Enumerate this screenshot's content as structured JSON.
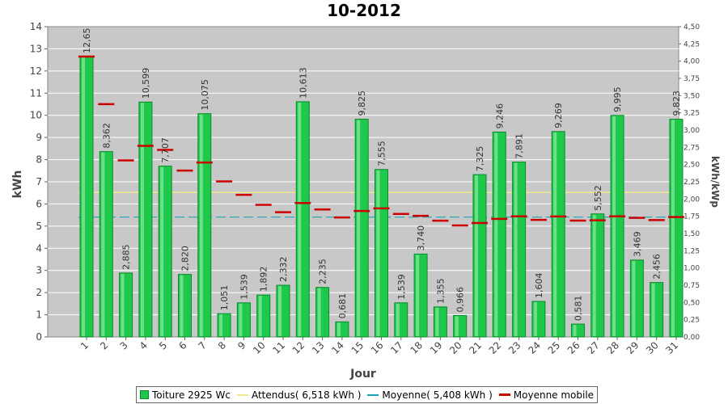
{
  "chart_data": {
    "type": "bar",
    "title": "10-2012",
    "xlabel": "Jour",
    "ylabel": "kWh",
    "y2label": "kWh/kWp",
    "ylim": [
      0,
      14
    ],
    "y2lim": [
      0,
      4.5
    ],
    "y2_ticks": [
      "0,00",
      "0,25",
      "0,50",
      "0,75",
      "1,00",
      "1,25",
      "1,50",
      "1,75",
      "2,00",
      "2,25",
      "2,50",
      "2,75",
      "3,00",
      "3,25",
      "3,50",
      "3,75",
      "4,00",
      "4,25",
      "4,50"
    ],
    "categories": [
      "1",
      "2",
      "3",
      "4",
      "5",
      "6",
      "7",
      "8",
      "9",
      "10",
      "11",
      "12",
      "13",
      "14",
      "15",
      "16",
      "17",
      "18",
      "19",
      "20",
      "21",
      "22",
      "23",
      "24",
      "25",
      "26",
      "27",
      "28",
      "29",
      "30",
      "31"
    ],
    "series": [
      {
        "name": "Toiture 2925 Wc",
        "type": "bar",
        "color": "#1ec84a",
        "values": [
          12.65,
          8.362,
          2.885,
          10.599,
          7.707,
          2.82,
          10.075,
          1.051,
          1.539,
          1.892,
          2.332,
          10.613,
          2.235,
          0.681,
          9.825,
          7.555,
          1.539,
          3.74,
          1.355,
          0.966,
          7.325,
          9.246,
          7.891,
          1.604,
          9.269,
          0.581,
          5.552,
          9.995,
          3.469,
          2.456,
          9.823
        ],
        "labels": [
          "12,65",
          "8,362",
          "2,885",
          "10,599",
          "7,707",
          "2,820",
          "10,075",
          "1,051",
          "1,539",
          "1,892",
          "2,332",
          "10,613",
          "2,235",
          "0,681",
          "9,825",
          "7,555",
          "1,539",
          "3,740",
          "1,355",
          "0,966",
          "7,325",
          "9,246",
          "7,891",
          "1,604",
          "9,269",
          "0,581",
          "5,552",
          "9,995",
          "3,469",
          "2,456",
          "9,823"
        ]
      },
      {
        "name": "Attendus( 6,518 kWh )",
        "type": "line",
        "color": "#f0ea8c",
        "value": 6.518
      },
      {
        "name": "Moyenne( 5,408 kWh )",
        "type": "line",
        "color": "#1aa3b4",
        "value": 5.408
      },
      {
        "name": "Moyenne mobile",
        "type": "step",
        "color": "#cc0000",
        "values": [
          12.65,
          10.506,
          7.966,
          8.624,
          8.441,
          7.504,
          7.872,
          7.02,
          6.411,
          5.959,
          5.629,
          6.044,
          5.751,
          5.389,
          5.685,
          5.802,
          5.551,
          5.462,
          5.246,
          5.032,
          5.141,
          5.328,
          5.44,
          5.28,
          5.439,
          5.252,
          5.264,
          5.44,
          5.372,
          5.275,
          5.408
        ]
      }
    ],
    "grid": true,
    "legend_position": "bottom"
  }
}
